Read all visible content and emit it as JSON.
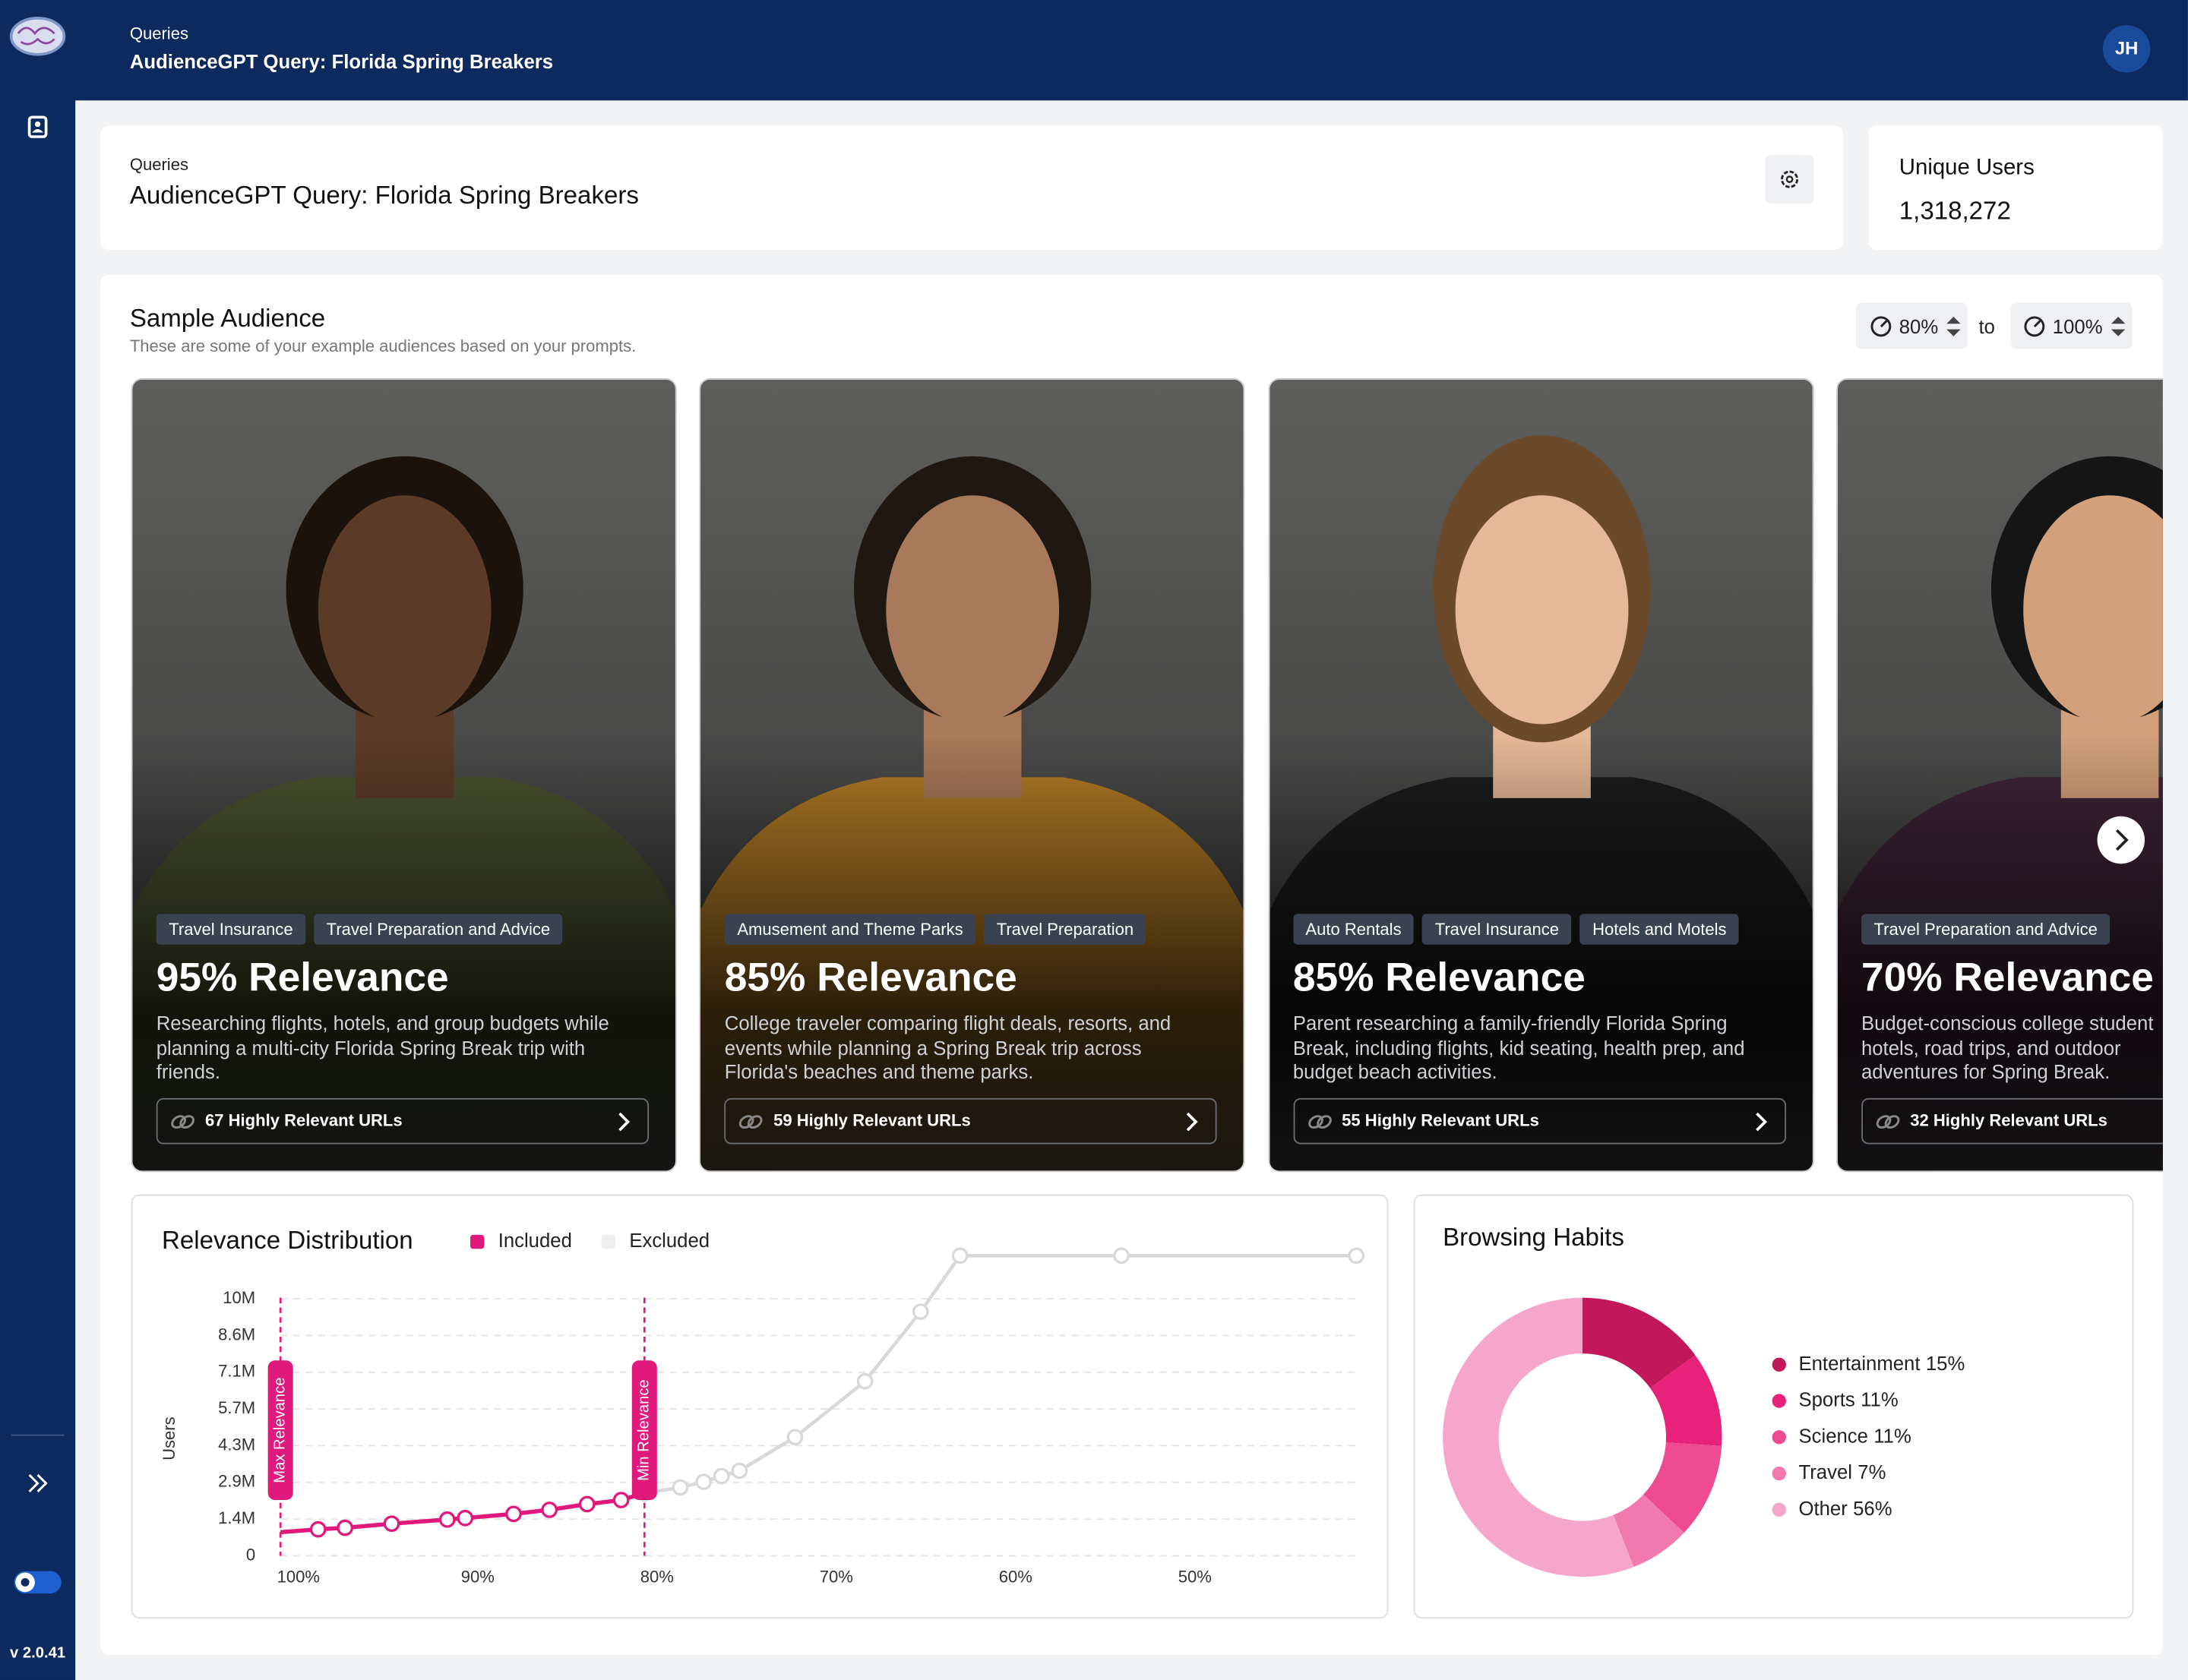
{
  "header": {
    "breadcrumb": "Queries",
    "title": "AudienceGPT Query: Florida Spring Breakers",
    "avatar": "JH"
  },
  "sidebar": {
    "version": "v 2.0.41"
  },
  "query_card": {
    "breadcrumb": "Queries",
    "title": "AudienceGPT Query: Florida Spring Breakers"
  },
  "unique_users": {
    "label": "Unique Users",
    "value": "1,318,272"
  },
  "sample_audience": {
    "title": "Sample Audience",
    "subtitle": "These are some of your example audiences based on your prompts.",
    "range_from": "80%",
    "range_to_word": "to",
    "range_to": "100%",
    "cards": [
      {
        "tags": [
          "Travel Insurance",
          "Travel Preparation and Advice"
        ],
        "relevance": "95% Relevance",
        "description": "Researching flights, hotels, and group budgets while planning a multi-city Florida Spring Break trip with friends.",
        "urls": "67 Highly Relevant URLs"
      },
      {
        "tags": [
          "Amusement and Theme Parks",
          "Travel Preparation"
        ],
        "relevance": "85% Relevance",
        "description": "College traveler comparing flight deals, resorts, and events while planning a Spring Break trip across Florida's beaches and theme parks.",
        "urls": "59 Highly Relevant URLs"
      },
      {
        "tags": [
          "Auto Rentals",
          "Travel Insurance",
          "Hotels and Motels"
        ],
        "relevance": "85% Relevance",
        "description": "Parent researching a family-friendly Florida Spring Break, including flights, kid seating, health prep, and budget beach activities.",
        "urls": "55 Highly Relevant URLs"
      },
      {
        "tags": [
          "Travel Preparation and Advice"
        ],
        "relevance": "70% Relevance",
        "description": "Budget-conscious college student hotels, road trips, and outdoor adventures for Spring Break.",
        "urls": "32 Highly Relevant URLs"
      }
    ]
  },
  "relevance_distribution": {
    "type": "line",
    "title": "Relevance Distribution",
    "y_label": "Users",
    "xlim": [
      101,
      41
    ],
    "ylim": [
      0,
      12000000
    ],
    "xticks": [
      {
        "value": 100,
        "label": "100%"
      },
      {
        "value": 90,
        "label": "90%"
      },
      {
        "value": 80,
        "label": "80%"
      },
      {
        "value": 70,
        "label": "70%"
      },
      {
        "value": 60,
        "label": "60%"
      },
      {
        "value": 50,
        "label": "50%"
      }
    ],
    "yticks": [
      0,
      {
        "value": 1428571,
        "label": "1.4M"
      },
      {
        "value": 2857143,
        "label": "2.9M"
      },
      {
        "value": 4285714,
        "label": "4.3M"
      },
      {
        "value": 5714286,
        "label": "5.7M"
      },
      {
        "value": 7142857,
        "label": "7.1M"
      },
      {
        "value": 8571429,
        "label": "8.6M"
      },
      {
        "value": 10000000,
        "label": "10M"
      }
    ],
    "grid": true,
    "series": [
      {
        "name": "Included",
        "color": "#e0197d",
        "x": [
          101,
          98.9,
          97.4,
          94.8,
          91.7,
          90.7,
          88.0,
          86.0,
          83.9,
          82.0,
          80.7
        ],
        "values": [
          920000,
          1030000,
          1090000,
          1250000,
          1410000,
          1470000,
          1630000,
          1790000,
          2010000,
          2170000,
          2440000
        ]
      },
      {
        "name": "Excluded",
        "color": "#d9d9d9",
        "x": [
          80.7,
          78.7,
          77.4,
          76.4,
          75.4,
          72.3,
          68.4,
          65.3,
          63.1,
          54.1,
          41
        ],
        "values": [
          2440000,
          2660000,
          2880000,
          3100000,
          3310000,
          4620000,
          6790000,
          9500000,
          11680000,
          11680000,
          11680000
        ]
      }
    ],
    "annotations": [
      {
        "label": "Max Relevance",
        "x": 101
      },
      {
        "label": "Min Relevance",
        "x": 80.7
      }
    ]
  },
  "browsing_habits": {
    "type": "pie",
    "title": "Browsing Habits",
    "categories": [
      "Entertainment",
      "Sports",
      "Science",
      "Travel",
      "Other"
    ],
    "values": [
      15,
      11,
      11,
      7,
      56
    ],
    "value_labels": [
      "15%",
      "11%",
      "11%",
      "7%",
      "56%"
    ],
    "colors": [
      "#c2185b",
      "#e8217a",
      "#ee4a92",
      "#f279b0",
      "#f7a6cb"
    ]
  }
}
